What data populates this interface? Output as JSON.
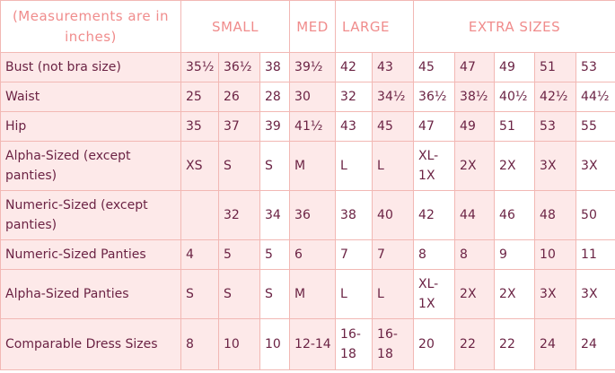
{
  "header": {
    "note": "(Measurements are in inches)",
    "groups": [
      "SMALL",
      "MED",
      "LARGE",
      "EXTRA SIZES"
    ]
  },
  "rows": [
    {
      "label": "Bust (not bra size)",
      "cells": [
        "35½",
        "36½",
        "38",
        "39½",
        "42",
        "43",
        "45",
        "47",
        "49",
        "51",
        "53"
      ]
    },
    {
      "label": "Waist",
      "cells": [
        "25",
        "26",
        "28",
        "30",
        "32",
        "34½",
        "36½",
        "38½",
        "40½",
        "42½",
        "44½"
      ]
    },
    {
      "label": "Hip",
      "cells": [
        "35",
        "37",
        "39",
        "41½",
        "43",
        "45",
        "47",
        "49",
        "51",
        "53",
        "55"
      ]
    },
    {
      "label": "Alpha-Sized (except panties)",
      "cells": [
        "XS",
        "S",
        "S",
        "M",
        "L",
        "L",
        "XL-1X",
        "2X",
        "2X",
        "3X",
        "3X"
      ]
    },
    {
      "label": "Numeric-Sized (except panties)",
      "cells": [
        "",
        "32",
        "34",
        "36",
        "38",
        "40",
        "42",
        "44",
        "46",
        "48",
        "50"
      ]
    },
    {
      "label": "Numeric-Sized Panties",
      "cells": [
        "4",
        "5",
        "5",
        "6",
        "7",
        "7",
        "8",
        "8",
        "9",
        "10",
        "11"
      ]
    },
    {
      "label": "Alpha-Sized Panties",
      "cells": [
        "S",
        "S",
        "S",
        "M",
        "L",
        "L",
        "XL-1X",
        "2X",
        "2X",
        "3X",
        "3X"
      ]
    },
    {
      "label": "Comparable Dress Sizes",
      "cells": [
        "8",
        "10",
        "10",
        "12-14",
        "16-18",
        "16-18",
        "20",
        "22",
        "22",
        "24",
        "24"
      ]
    }
  ],
  "colors": {
    "header_text": "#f08c8c",
    "body_text": "#6b2344",
    "border": "#f2b8b4",
    "shade": "#fde9e9"
  }
}
